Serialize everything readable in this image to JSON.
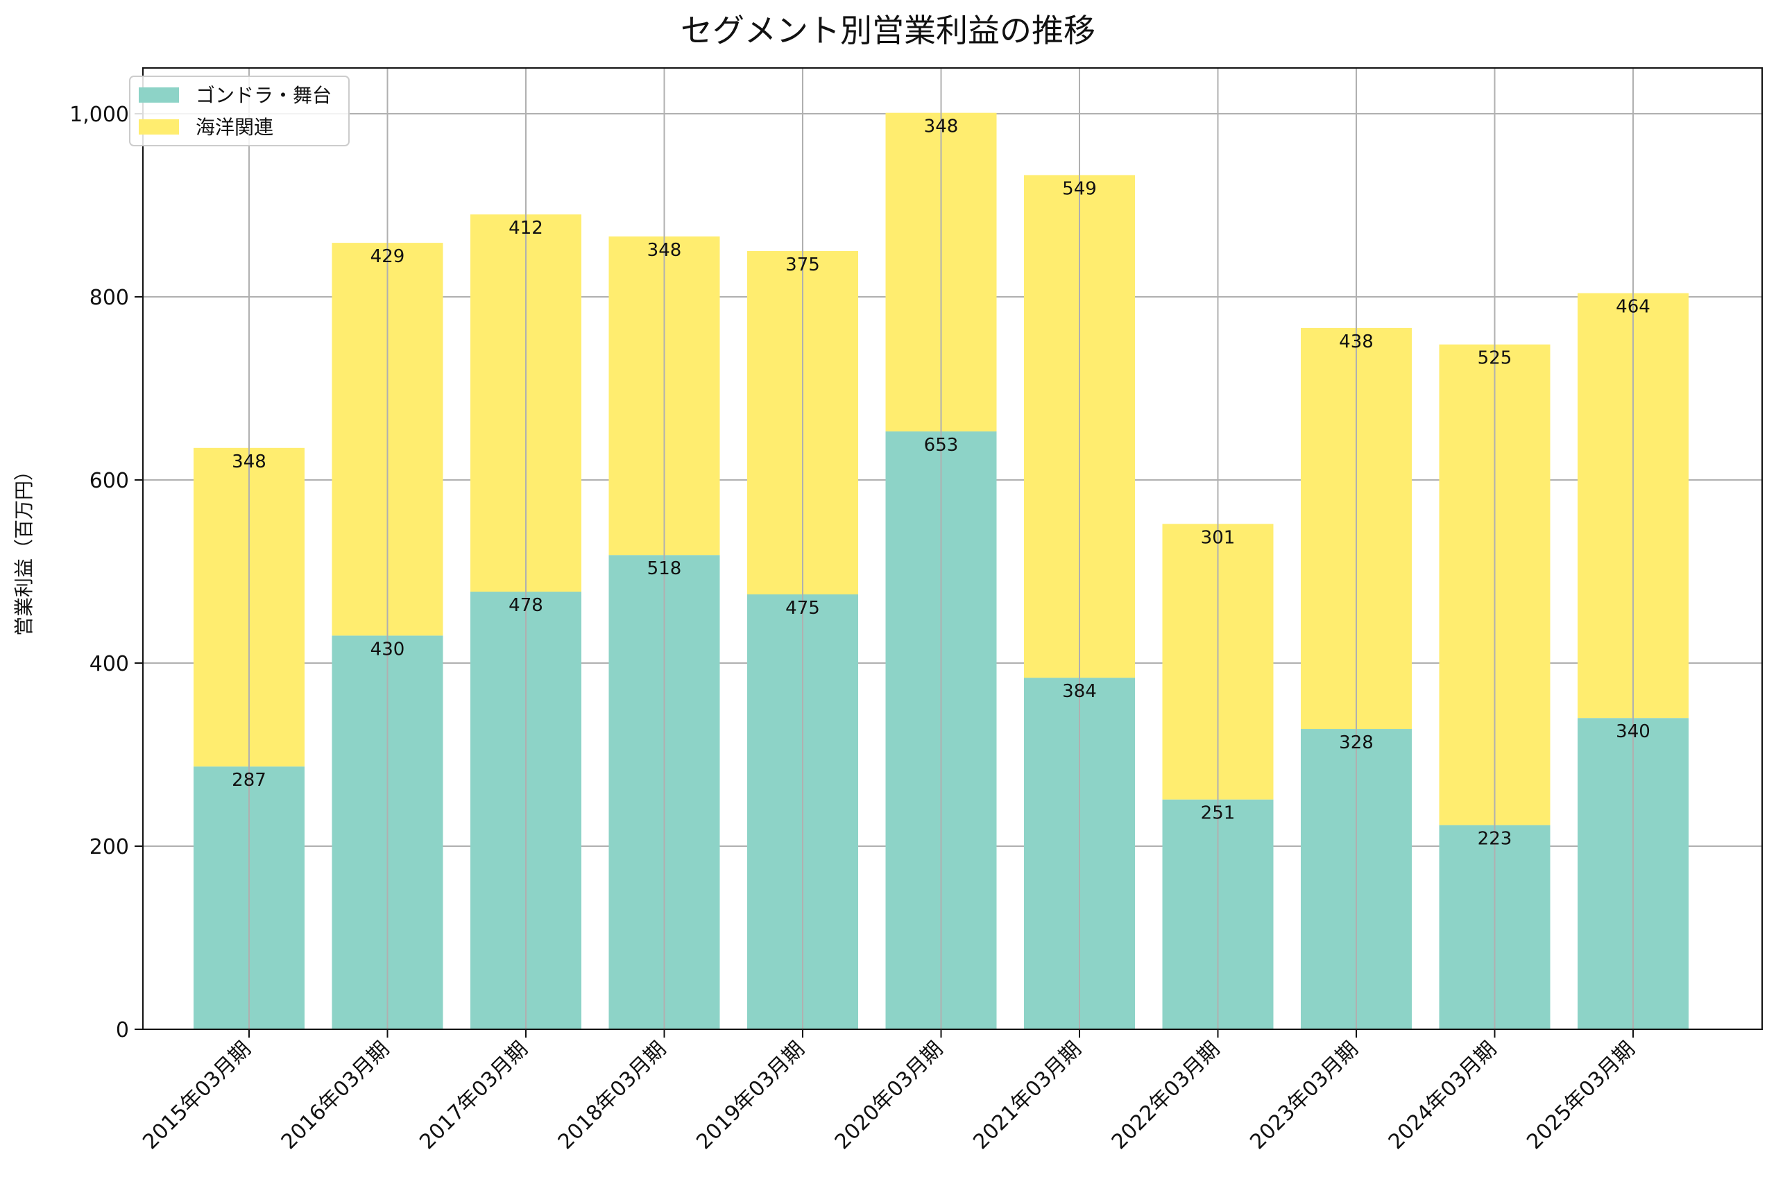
{
  "chart_data": {
    "type": "bar",
    "stacked": true,
    "title": "セグメント別営業利益の推移",
    "xlabel": "",
    "ylabel": "営業利益（百万円）",
    "ylim": [
      0,
      1050
    ],
    "yticks": [
      0,
      200,
      400,
      600,
      800,
      1000
    ],
    "ytick_labels": [
      "0",
      "200",
      "400",
      "600",
      "800",
      "1,000"
    ],
    "grid": true,
    "legend_position": "top-left",
    "categories": [
      "2015年03月期",
      "2016年03月期",
      "2017年03月期",
      "2018年03月期",
      "2019年03月期",
      "2020年03月期",
      "2021年03月期",
      "2022年03月期",
      "2023年03月期",
      "2024年03月期",
      "2025年03月期"
    ],
    "series": [
      {
        "name": "ゴンドラ・舞台",
        "color": "#8dd3c7",
        "values": [
          287,
          430,
          478,
          518,
          475,
          653,
          384,
          251,
          328,
          223,
          340
        ]
      },
      {
        "name": "海洋関連",
        "color": "#ffed6f",
        "values": [
          348,
          429,
          412,
          348,
          375,
          348,
          549,
          301,
          438,
          525,
          464
        ]
      }
    ]
  }
}
